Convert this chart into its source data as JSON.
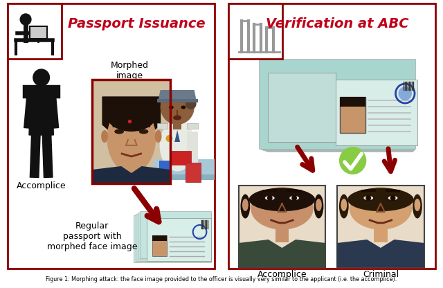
{
  "title": "Figure 1: Morphing attack: the face image provided to the officer is visually very similar to the applicant (i.e. the accomplice).",
  "left_panel_title": "Passport Issuance",
  "right_panel_title": "Verification at ABC",
  "border_color": "#8B0000",
  "bg_color": "#FFFFFF",
  "text_color": "#000000",
  "title_color": "#C0001A",
  "label_accomplice_left": "Accomplice",
  "label_morphed": "Morphed\nimage",
  "label_regular_passport": "Regular\npassport with\nmorphed face image",
  "label_accomplice_right": "Accomplice",
  "label_criminal": "Criminal",
  "skin_dark": "#8B5E3C",
  "skin_medium": "#C8956B",
  "skin_light": "#D4A57A",
  "hair_dark": "#1A1008",
  "passport_teal": "#C2E5DF",
  "passport_teal2": "#A8D5CE",
  "passport_page": "#D8EEE8",
  "passport_cover": "#2A6040"
}
